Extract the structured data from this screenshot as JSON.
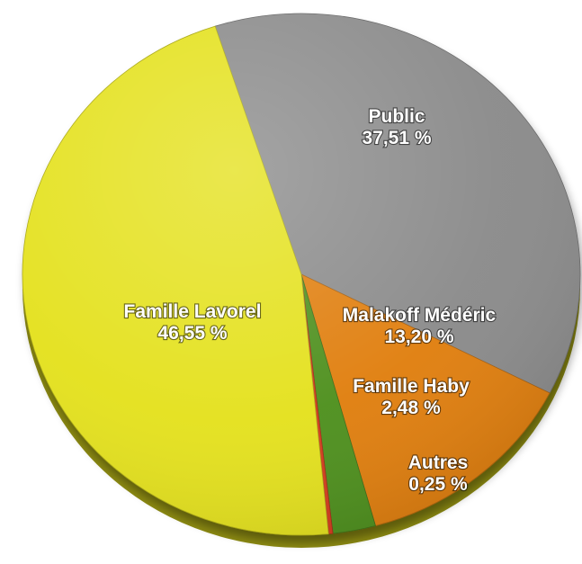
{
  "chart_data": {
    "type": "pie",
    "title": "",
    "slices": [
      {
        "label": "Public",
        "value": 37.51,
        "value_label": "37,51 %",
        "color": "#8a8a8a"
      },
      {
        "label": "Malakoff Médéric",
        "value": 13.2,
        "value_label": "13,20 %",
        "color": "#e07e0c"
      },
      {
        "label": "Famille Haby",
        "value": 2.48,
        "value_label": "2,48 %",
        "color": "#4e8f1c"
      },
      {
        "label": "Autres",
        "value": 0.25,
        "value_label": "0,25 %",
        "color": "#d43a1a"
      },
      {
        "label": "Famille Lavorel",
        "value": 46.55,
        "value_label": "46,55 %",
        "color": "#e4e11c"
      }
    ]
  }
}
